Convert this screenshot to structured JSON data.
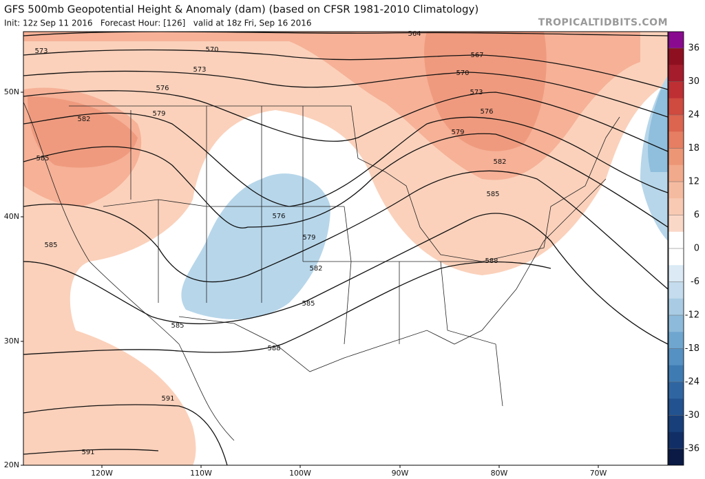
{
  "header": {
    "title": "GFS 500mb Geopotential Height & Anomaly (dam) (based on CFSR 1981-2010 Climatology)",
    "subtitle": "Init: 12z Sep 11 2016   Forecast Hour: [126]   valid at 18z Fri, Sep 16 2016",
    "watermark": "TROPICALTIDBITS.COM"
  },
  "lat_labels": [
    "50N",
    "40N",
    "30N",
    "20N"
  ],
  "lon_labels": [
    "120W",
    "110W",
    "100W",
    "90W",
    "80W",
    "70W"
  ],
  "contour_labels": [
    "573",
    "570",
    "564",
    "567",
    "570",
    "573",
    "573",
    "576",
    "576",
    "579",
    "579",
    "582",
    "582",
    "585",
    "585",
    "576",
    "579",
    "582",
    "585",
    "585",
    "585",
    "588",
    "588",
    "591",
    "591"
  ],
  "colorbar": {
    "ticks": [
      36,
      30,
      24,
      18,
      12,
      6,
      0,
      -6,
      -12,
      -18,
      -24,
      -30,
      -36
    ]
  }
}
